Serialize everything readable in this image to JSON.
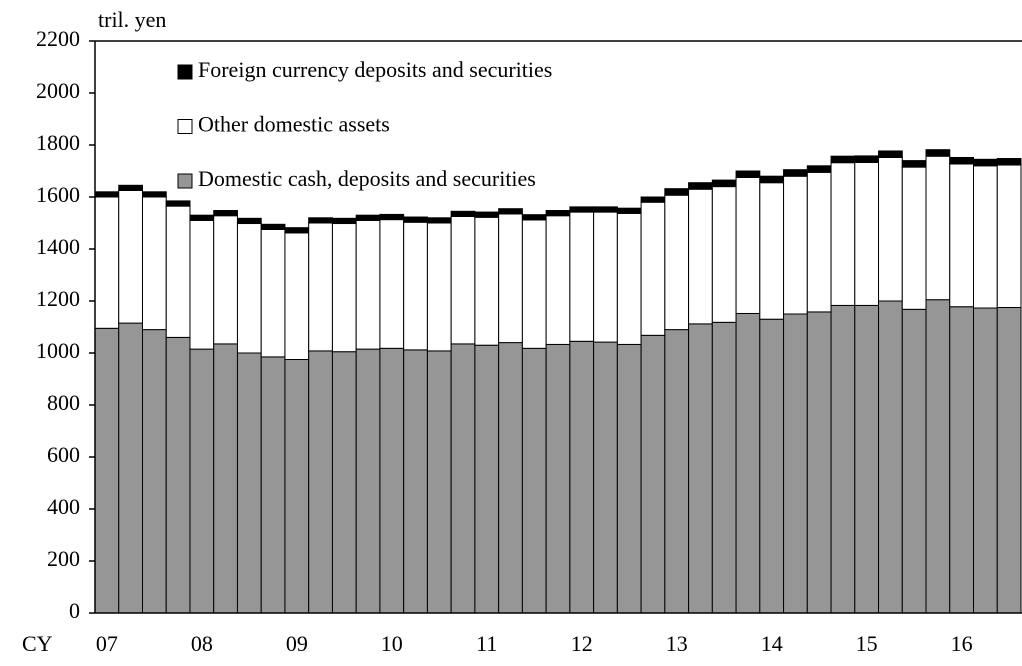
{
  "chart_data": {
    "type": "stacked_bar",
    "ylabel": "tril. yen",
    "xlabel": "CY",
    "categories": [
      "07",
      null,
      null,
      null,
      "08",
      null,
      null,
      null,
      "09",
      null,
      null,
      null,
      "10",
      null,
      null,
      null,
      "11",
      null,
      null,
      null,
      "12",
      null,
      null,
      null,
      "13",
      null,
      null,
      null,
      "14",
      null,
      null,
      null,
      "15",
      null,
      null,
      null,
      "16",
      null,
      null
    ],
    "series": [
      {
        "name": "Domestic cash, deposits and securities",
        "color": "#969696",
        "values": [
          1095,
          1115,
          1090,
          1060,
          1015,
          1035,
          1000,
          985,
          975,
          1008,
          1005,
          1015,
          1018,
          1012,
          1008,
          1035,
          1030,
          1040,
          1018,
          1033,
          1045,
          1042,
          1033,
          1068,
          1090,
          1112,
          1118,
          1152,
          1130,
          1150,
          1158,
          1183,
          1183,
          1200,
          1168,
          1205,
          1178,
          1173,
          1175
        ]
      },
      {
        "name": "Other domestic assets",
        "color": "#ffffff",
        "values": [
          505,
          510,
          510,
          505,
          495,
          493,
          498,
          490,
          487,
          492,
          493,
          495,
          495,
          491,
          492,
          490,
          492,
          495,
          494,
          495,
          497,
          500,
          504,
          512,
          517,
          518,
          522,
          523,
          525,
          530,
          537,
          549,
          550,
          552,
          547,
          552,
          549,
          547,
          548
        ]
      },
      {
        "name": "Foreign currency deposits and securities",
        "color": "#000000",
        "values": [
          20,
          20,
          20,
          20,
          20,
          20,
          20,
          20,
          20,
          20,
          20,
          20,
          20,
          20,
          20,
          20,
          20,
          20,
          20,
          20,
          20,
          20,
          20,
          20,
          25,
          25,
          25,
          25,
          25,
          25,
          25,
          25,
          25,
          25,
          25,
          25,
          25,
          25,
          25
        ]
      }
    ],
    "ylim": [
      0,
      2200
    ],
    "yticks": [
      0,
      200,
      400,
      600,
      800,
      1000,
      1200,
      1400,
      1600,
      1800,
      2000,
      2200
    ],
    "legend": "upper-left"
  }
}
